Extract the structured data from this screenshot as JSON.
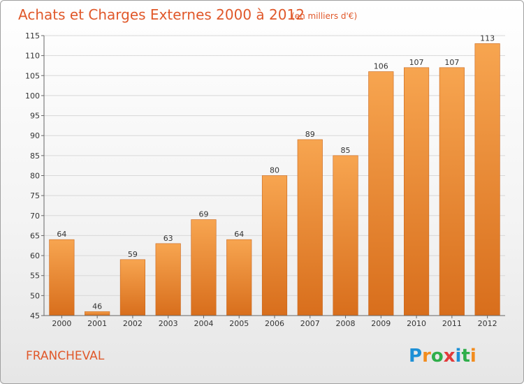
{
  "chart_data": {
    "type": "bar",
    "title": "Achats et Charges Externes 2000 à 2012",
    "subtitle": "(en milliers d'€)",
    "categories": [
      "2000",
      "2001",
      "2002",
      "2003",
      "2004",
      "2005",
      "2006",
      "2007",
      "2008",
      "2009",
      "2010",
      "2011",
      "2012"
    ],
    "values": [
      64,
      46,
      59,
      63,
      69,
      64,
      80,
      89,
      85,
      106,
      107,
      107,
      113
    ],
    "ylim": [
      45,
      115
    ],
    "yticks": [
      45,
      50,
      55,
      60,
      65,
      70,
      75,
      80,
      85,
      90,
      95,
      100,
      105,
      110,
      115
    ],
    "grid": true,
    "bar_color": "#f0862a"
  },
  "commune": "FRANCHEVAL",
  "logo": {
    "letters": [
      "P",
      "r",
      "o",
      "x",
      "i",
      "t",
      "i"
    ],
    "colors": [
      "#1e90d6",
      "#f28c1e",
      "#2fae4a",
      "#e23a3a",
      "#1e90d6",
      "#2fae4a",
      "#f28c1e"
    ]
  }
}
